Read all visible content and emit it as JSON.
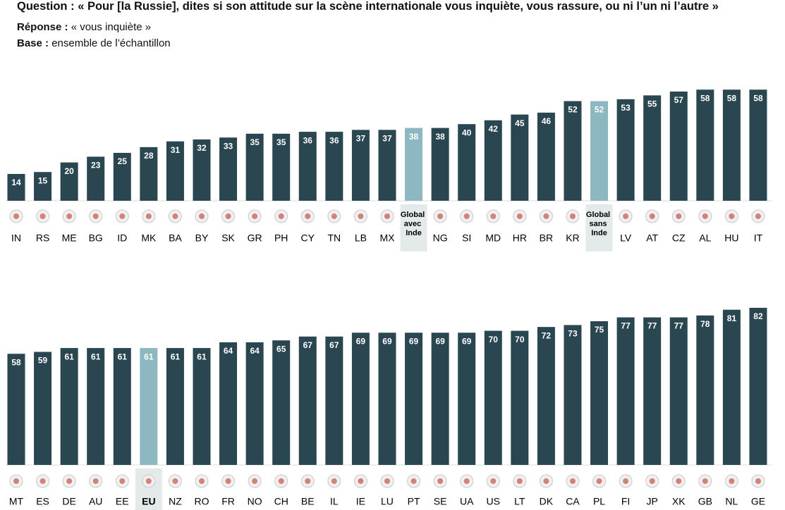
{
  "header": {
    "question_label": "Question :",
    "question": "« Pour [la Russie], dites si son attitude sur la scène internationale vous inquiète, vous rassure, ou ni l’un ni l’autre »",
    "response_label": "Réponse :",
    "response": "« vous inquiète »",
    "base_label": "Base :",
    "base": "ensemble de l’échantillon"
  },
  "chart_data": [
    {
      "type": "bar",
      "categories": [
        "IN",
        "RS",
        "ME",
        "BG",
        "ID",
        "MK",
        "BA",
        "BY",
        "SK",
        "GR",
        "PH",
        "CY",
        "TN",
        "LB",
        "MX",
        "Global avec Inde",
        "NG",
        "SI",
        "MD",
        "HR",
        "BR",
        "KR",
        "Global sans Inde",
        "LV",
        "AT",
        "CZ",
        "AL",
        "HU",
        "IT"
      ],
      "values": [
        14,
        15,
        20,
        23,
        25,
        28,
        31,
        32,
        33,
        35,
        35,
        36,
        36,
        37,
        37,
        38,
        38,
        40,
        42,
        45,
        46,
        52,
        52,
        53,
        55,
        57,
        58,
        58,
        58
      ],
      "colors": [
        "#2a4651",
        "#2a4651",
        "#2a4651",
        "#2a4651",
        "#2a4651",
        "#2a4651",
        "#2a4651",
        "#2a4651",
        "#2a4651",
        "#2a4651",
        "#2a4651",
        "#2a4651",
        "#2a4651",
        "#2a4651",
        "#2a4651",
        "#8db8c1",
        "#2a4651",
        "#2a4651",
        "#2a4651",
        "#2a4651",
        "#2a4651",
        "#2a4651",
        "#8db8c1",
        "#2a4651",
        "#2a4651",
        "#2a4651",
        "#2a4651",
        "#2a4651",
        "#2a4651"
      ],
      "color": "#2a4651"
    },
    {
      "type": "bar",
      "categories": [
        "MT",
        "ES",
        "DE",
        "AU",
        "EE",
        "EU",
        "NZ",
        "RO",
        "FR",
        "NO",
        "CH",
        "BE",
        "IL",
        "IE",
        "LU",
        "PT",
        "SE",
        "UA",
        "US",
        "LT",
        "DK",
        "CA",
        "PL",
        "FI",
        "JP",
        "XK",
        "GB",
        "NL",
        "GE"
      ],
      "values": [
        58,
        59,
        61,
        61,
        61,
        61,
        61,
        61,
        64,
        64,
        65,
        67,
        67,
        69,
        69,
        69,
        69,
        69,
        70,
        70,
        72,
        73,
        75,
        77,
        77,
        77,
        78,
        81,
        82
      ],
      "colors": [
        "#2a4651",
        "#2a4651",
        "#2a4651",
        "#2a4651",
        "#2a4651",
        "#8db8c1",
        "#2a4651",
        "#2a4651",
        "#2a4651",
        "#2a4651",
        "#2a4651",
        "#2a4651",
        "#2a4651",
        "#2a4651",
        "#2a4651",
        "#2a4651",
        "#2a4651",
        "#2a4651",
        "#2a4651",
        "#2a4651",
        "#2a4651",
        "#2a4651",
        "#2a4651",
        "#2a4651",
        "#2a4651",
        "#2a4651",
        "#2a4651",
        "#2a4651",
        "#2a4651"
      ],
      "color": "#2a4651"
    }
  ]
}
